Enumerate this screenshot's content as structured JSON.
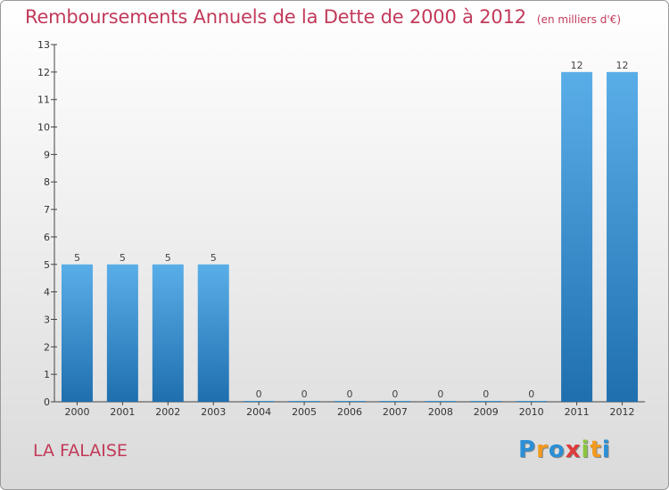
{
  "title": "Remboursements Annuels de la Dette de 2000 à 2012",
  "unit": "(en milliers d'€)",
  "town": "LA FALAISE",
  "logo": {
    "letters": [
      "P",
      "r",
      "o",
      "x",
      "i",
      "t",
      "i"
    ],
    "colors": [
      "#2b8fd6",
      "#f29a1d",
      "#2b8fd6",
      "#e03a3a",
      "#8cc63e",
      "#f29a1d",
      "#2b8fd6"
    ]
  },
  "colors": {
    "bar_top": "#5aaee8",
    "bar_bottom": "#1f6faf",
    "title": "#c23a5a"
  },
  "chart_data": {
    "type": "bar",
    "title": "Remboursements Annuels de la Dette de 2000 à 2012",
    "categories": [
      "2000",
      "2001",
      "2002",
      "2003",
      "2004",
      "2005",
      "2006",
      "2007",
      "2008",
      "2009",
      "2010",
      "2011",
      "2012"
    ],
    "values": [
      5,
      5,
      5,
      5,
      0,
      0,
      0,
      0,
      0,
      0,
      0,
      12,
      12
    ],
    "ylim": [
      0,
      13
    ],
    "yticks": [
      0,
      1,
      2,
      3,
      4,
      5,
      6,
      7,
      8,
      9,
      10,
      11,
      12,
      13
    ],
    "grid": false,
    "legend": "none"
  }
}
